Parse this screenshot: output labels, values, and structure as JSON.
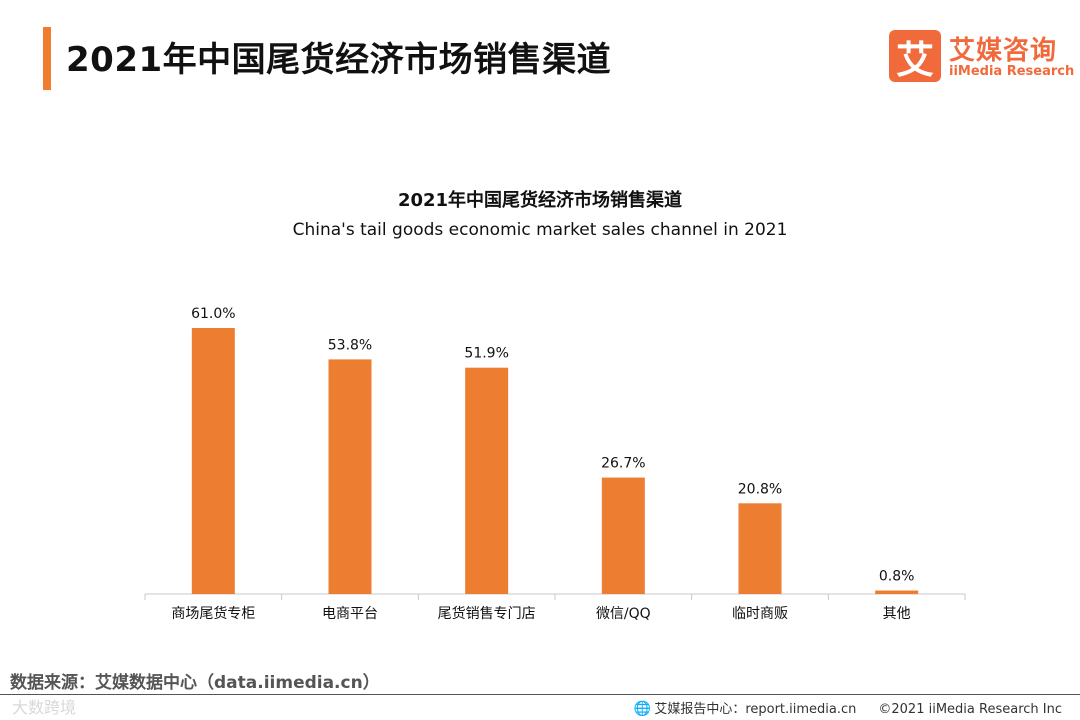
{
  "header": {
    "title": "2021年中国尾货经济市场销售渠道",
    "logo_mark": "艾",
    "logo_cn": "艾媒咨询",
    "logo_en": "iiMedia Research"
  },
  "chart_data": {
    "type": "bar",
    "title": "2021年中国尾货经济市场销售渠道",
    "subtitle": "China's tail goods economic market sales channel in 2021",
    "categories": [
      "商场尾货专柜",
      "电商平台",
      "尾货销售专门店",
      "微信/QQ",
      "临时商贩",
      "其他"
    ],
    "values": [
      61.0,
      53.8,
      51.9,
      26.7,
      20.8,
      0.8
    ],
    "value_labels": [
      "61.0%",
      "53.8%",
      "51.9%",
      "26.7%",
      "20.8%",
      "0.8%"
    ],
    "xlabel": "",
    "ylabel": "",
    "ylim": [
      0,
      61.0
    ],
    "grid": false,
    "bar_color": "#ed7d31"
  },
  "footer": {
    "source": "数据来源：艾媒数据中心（data.iimedia.cn）",
    "report_center": "艾媒报告中心：report.iimedia.cn",
    "copyright": "©2021  iiMedia Research  Inc",
    "watermark": "大数跨境",
    "globe_icon": "globe-icon"
  }
}
